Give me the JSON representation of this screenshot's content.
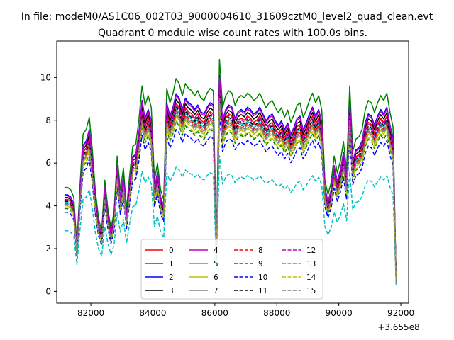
{
  "figure": {
    "suptitle": "In file: modeM0/AS1C06_002T03_9000004610_31609cztM0_level2_quad_clean.evt"
  },
  "chart_data": {
    "type": "line",
    "title": "Quadrant 0 module wise count rates with 100.0s bins.",
    "xlabel": "",
    "ylabel": "",
    "x_offset_label": "+3.655e8",
    "xlim": [
      80900,
      92250
    ],
    "ylim": [
      -0.55,
      11.7
    ],
    "x_ticks": [
      82000,
      84000,
      86000,
      88000,
      90000,
      92000
    ],
    "x_tick_labels": [
      "82000",
      "84000",
      "86000",
      "88000",
      "90000",
      "92000"
    ],
    "y_ticks": [
      0,
      2,
      4,
      6,
      8,
      10
    ],
    "y_tick_labels": [
      "0",
      "2",
      "4",
      "6",
      "8",
      "10"
    ],
    "grid": false,
    "legend_position": "lower-center",
    "legend_columns": 4,
    "x": [
      81150,
      81250,
      81350,
      81450,
      81550,
      81650,
      81750,
      81850,
      81950,
      82050,
      82150,
      82250,
      82350,
      82450,
      82550,
      82650,
      82750,
      82850,
      82950,
      83050,
      83150,
      83250,
      83350,
      83450,
      83550,
      83650,
      83750,
      83850,
      83950,
      84050,
      84150,
      84250,
      84350,
      84450,
      84550,
      84650,
      84750,
      84850,
      84950,
      85050,
      85150,
      85250,
      85350,
      85450,
      85550,
      85650,
      85750,
      85850,
      85950,
      86050,
      86150,
      86250,
      86350,
      86450,
      86550,
      86650,
      86750,
      86850,
      86950,
      87050,
      87150,
      87250,
      87350,
      87450,
      87550,
      87650,
      87750,
      87850,
      87950,
      88050,
      88150,
      88250,
      88350,
      88450,
      88550,
      88650,
      88750,
      88850,
      88950,
      89050,
      89150,
      89250,
      89350,
      89450,
      89550,
      89650,
      89750,
      89850,
      89950,
      90050,
      90150,
      90250,
      90350,
      90450,
      90550,
      90650,
      90750,
      90850,
      90950,
      91050,
      91150,
      91250,
      91350,
      91450,
      91550,
      91650,
      91750,
      91850
    ],
    "series": [
      {
        "name": "0",
        "color": "#ff0000",
        "dash": "solid",
        "base": 1.0
      },
      {
        "name": "1",
        "color": "#008000",
        "dash": "solid",
        "base": 1.13
      },
      {
        "name": "2",
        "color": "#0000ff",
        "dash": "solid",
        "base": 1.05
      },
      {
        "name": "3",
        "color": "#000000",
        "dash": "solid",
        "base": 1.02
      },
      {
        "name": "4",
        "color": "#bf00bf",
        "dash": "solid",
        "base": 1.04
      },
      {
        "name": "5",
        "color": "#00bfbf",
        "dash": "solid",
        "base": 0.97
      },
      {
        "name": "6",
        "color": "#bfbf00",
        "dash": "solid",
        "base": 0.93
      },
      {
        "name": "7",
        "color": "#808080",
        "dash": "solid",
        "base": 0.95
      },
      {
        "name": "8",
        "color": "#ff0000",
        "dash": "dashed",
        "base": 0.96
      },
      {
        "name": "9",
        "color": "#008000",
        "dash": "dashed",
        "base": 0.9
      },
      {
        "name": "10",
        "color": "#0000ff",
        "dash": "dashed",
        "base": 0.86
      },
      {
        "name": "11",
        "color": "#000000",
        "dash": "dashed",
        "base": 0.98
      },
      {
        "name": "12",
        "color": "#bf00bf",
        "dash": "dashed",
        "base": 0.99
      },
      {
        "name": "13",
        "color": "#00bfbf",
        "dash": "dashed",
        "base": 0.66
      },
      {
        "name": "14",
        "color": "#bfbf00",
        "dash": "dashed",
        "base": 0.91
      },
      {
        "name": "15",
        "color": "#808080",
        "dash": "dashed",
        "base": 0.94
      }
    ],
    "profile": [
      4.3,
      4.3,
      4.2,
      3.9,
      1.9,
      4.4,
      6.5,
      6.7,
      7.2,
      5.8,
      4.1,
      3.0,
      2.5,
      4.6,
      3.4,
      2.6,
      3.3,
      5.6,
      4.2,
      5.1,
      3.4,
      4.8,
      6.0,
      6.1,
      7.1,
      8.5,
      7.7,
      8.1,
      7.6,
      4.6,
      5.3,
      4.2,
      3.8,
      8.4,
      7.8,
      8.2,
      8.8,
      8.6,
      8.1,
      8.6,
      8.4,
      8.3,
      8.1,
      8.3,
      8.0,
      7.9,
      8.2,
      8.4,
      8.3,
      1.8,
      9.6,
      7.6,
      8.1,
      8.3,
      8.2,
      7.7,
      8.0,
      8.1,
      8.0,
      8.2,
      8.1,
      7.9,
      8.0,
      8.2,
      7.9,
      7.6,
      7.8,
      7.9,
      7.6,
      7.4,
      7.6,
      7.2,
      7.5,
      7.0,
      7.3,
      7.7,
      7.8,
      7.2,
      7.5,
      7.9,
      8.2,
      7.8,
      8.1,
      7.5,
      4.6,
      4.0,
      4.5,
      5.6,
      4.9,
      5.4,
      6.2,
      5.0,
      8.5,
      5.8,
      6.3,
      6.4,
      6.7,
      7.5,
      7.9,
      7.8,
      7.4,
      7.8,
      8.1,
      7.9,
      8.2,
      7.4,
      6.8,
      0.4
    ],
    "series_values_rule": "each series value = profile value x series base"
  }
}
